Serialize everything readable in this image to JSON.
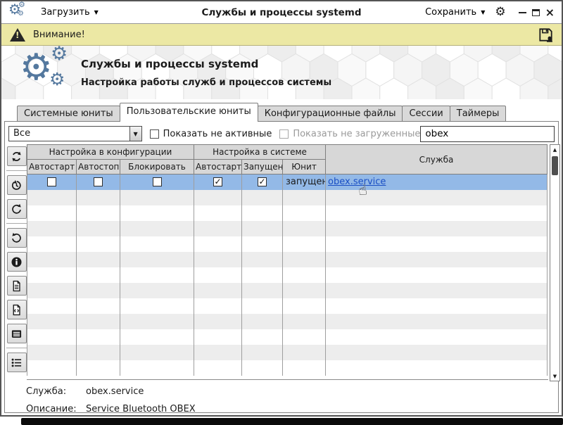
{
  "titlebar": {
    "load_label": "Загрузить",
    "title": "Службы и процессы systemd",
    "save_label": "Сохранить"
  },
  "warning_bar": {
    "text": "Внимание!"
  },
  "hero": {
    "title": "Службы и процессы systemd",
    "subtitle": "Настройка работы служб и процессов системы"
  },
  "tabs": [
    {
      "label": "Системные юниты",
      "active": false
    },
    {
      "label": "Пользовательские юниты",
      "active": true
    },
    {
      "label": "Конфигурационные файлы",
      "active": false
    },
    {
      "label": "Сессии",
      "active": false
    },
    {
      "label": "Таймеры",
      "active": false
    }
  ],
  "filters": {
    "type_value": "Все",
    "show_inactive_label": "Показать не активные",
    "show_inactive_checked": false,
    "show_unloaded_label": "Показать не загруженные",
    "show_unloaded_checked": false,
    "show_unloaded_enabled": false,
    "search_value": "obex"
  },
  "toolbar": {
    "groups": [
      [
        "refresh"
      ],
      [
        "history-restore",
        "redo"
      ],
      [
        "undo",
        "info",
        "view-file",
        "edit-unit-file",
        "journal"
      ],
      [
        "dependencies-list"
      ]
    ]
  },
  "table": {
    "group_headers": [
      {
        "label": "Настройка в конфигурации",
        "span": 3
      },
      {
        "label": "Настройка в системе",
        "span": 3
      }
    ],
    "service_header": "Служба",
    "sub_headers": [
      "Автостарт",
      "Автостоп",
      "Блокировать",
      "Автостарт",
      "Запущена",
      "Юнит"
    ],
    "rows": [
      {
        "selected": true,
        "config_autostart": false,
        "config_autostop": false,
        "config_block": false,
        "system_autostart": true,
        "system_running": true,
        "unit_state": "запущен",
        "service": "obex.service"
      }
    ],
    "empty_rows": 12
  },
  "details": {
    "service_label": "Служба:",
    "service_value": "obex.service",
    "description_label": "Описание:",
    "description_value": "Service Bluetooth OBEX"
  },
  "icons": {
    "app": "gears",
    "warning": "warning-triangle",
    "warning_save": "floppy-lock",
    "settings": "gear",
    "window": [
      "minimize",
      "maximize",
      "close"
    ],
    "scrollbar": [
      "arrow-up",
      "arrow-down"
    ],
    "cursor": "hand-pointer"
  },
  "colors": {
    "selection": "#93b9e7",
    "warning_bg": "#ece8a4",
    "link": "#1a4fc4",
    "accent_gears": "#54789e"
  }
}
